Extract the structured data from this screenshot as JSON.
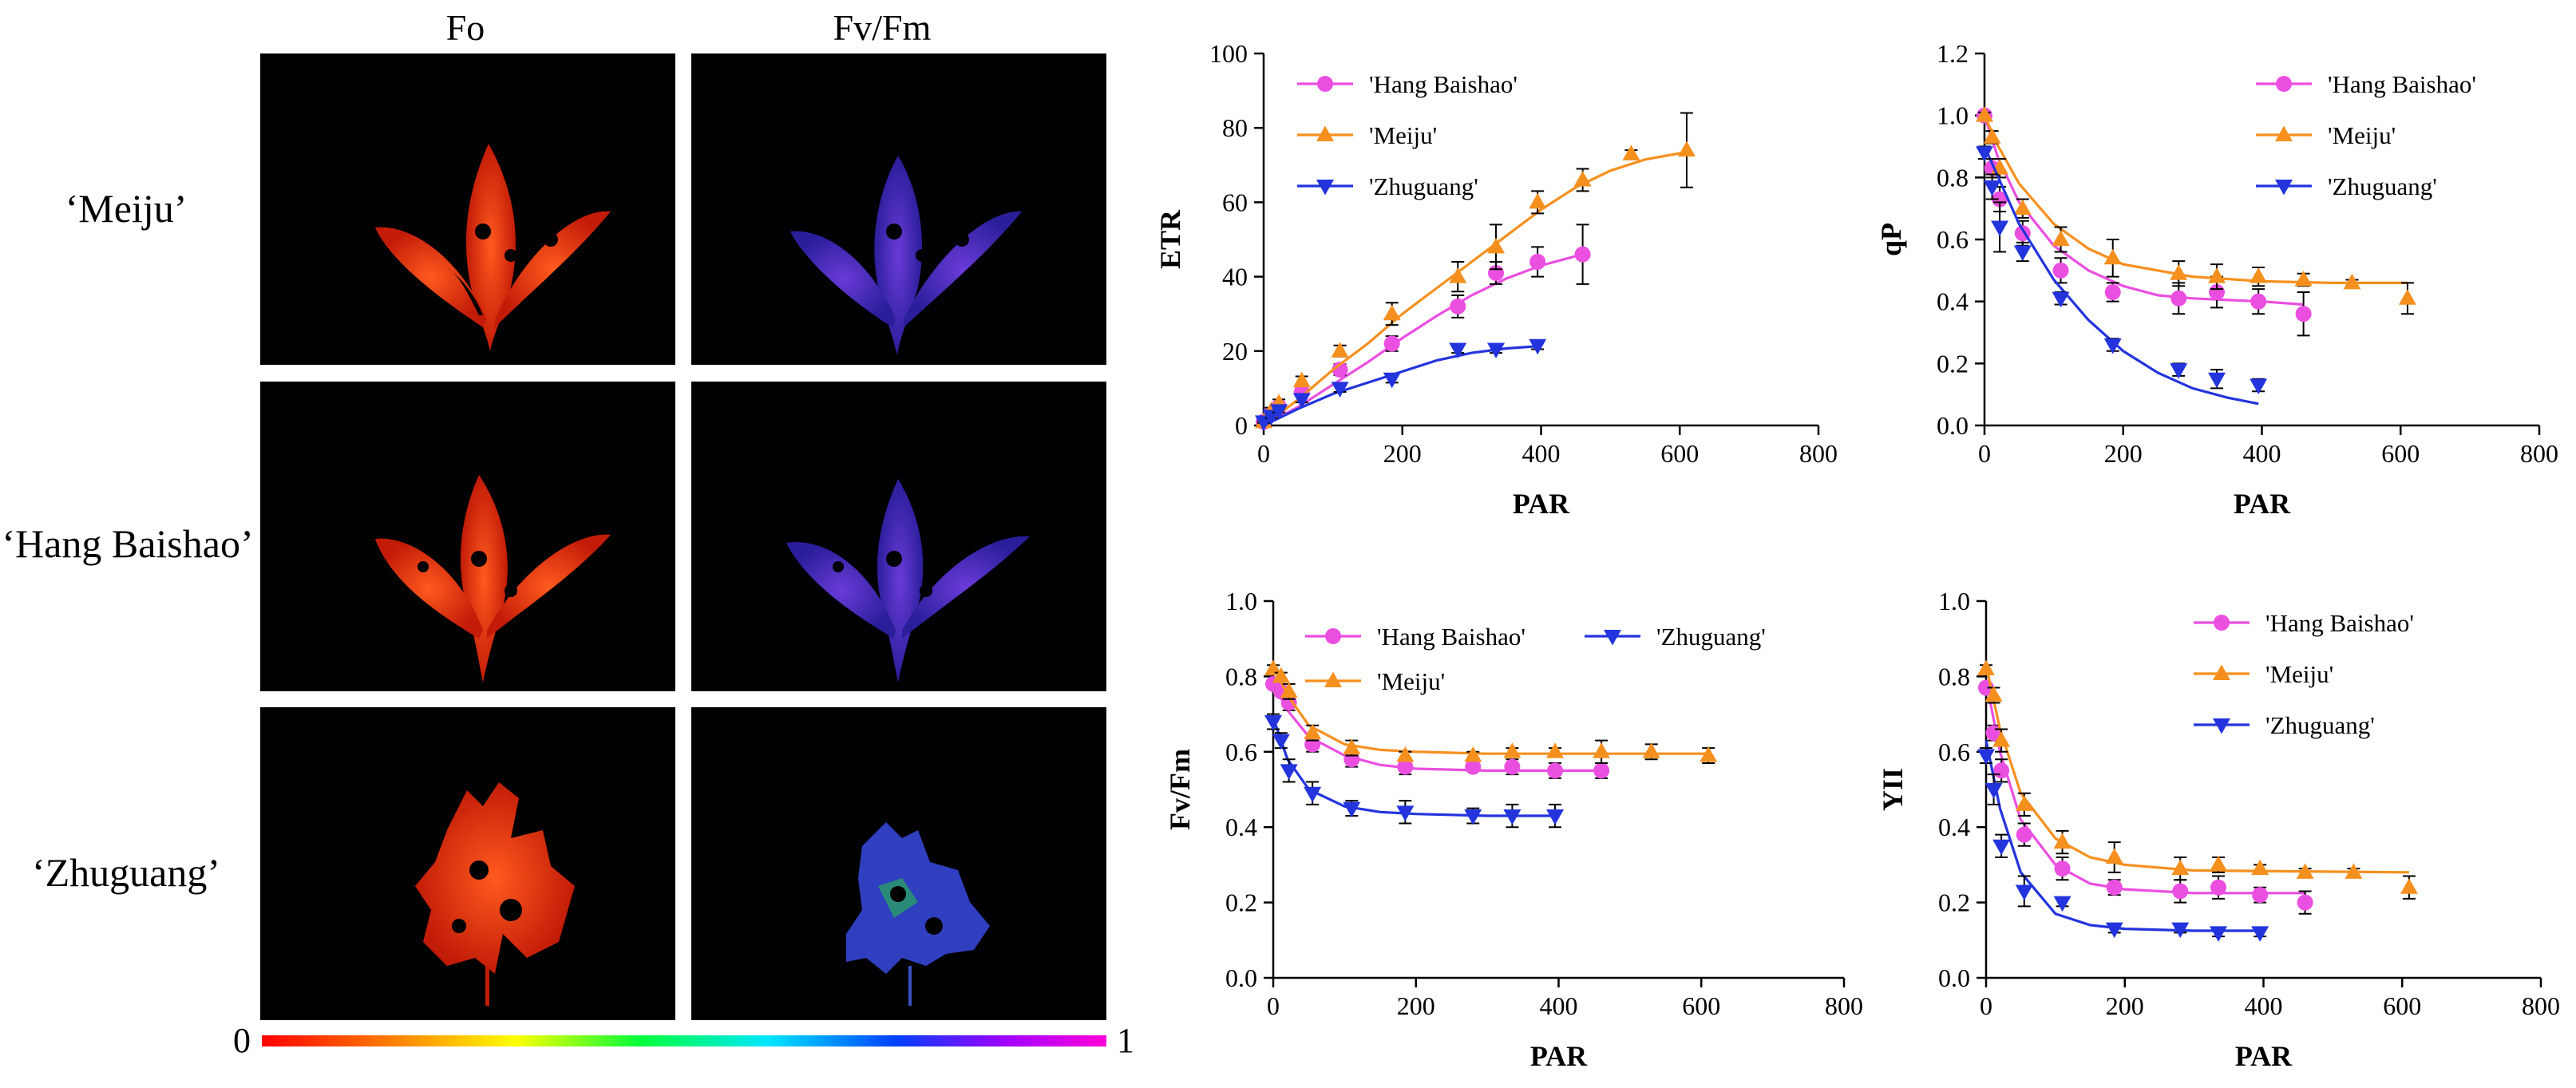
{
  "figure": {
    "column_titles": [
      "Fo",
      "Fv/Fm"
    ],
    "row_labels": [
      "‘Meiju’",
      "‘Hang Baishao’",
      "‘Zhuguang’"
    ],
    "colorbar": {
      "min_label": "0",
      "max_label": "1"
    }
  },
  "colors": {
    "hang": "#ea4fe0",
    "meiju": "#f5901f",
    "zhuguang": "#2334dd",
    "fo_leaf": "#ee3a12",
    "fvfm_leaf": "#4f2cc0",
    "image_bg": "#000000"
  },
  "chart_data": [
    {
      "type": "scatter",
      "xlabel": "PAR",
      "ylabel": "ETR",
      "xlim": [
        0,
        800
      ],
      "ylim": [
        0,
        100
      ],
      "xticks": [
        "0",
        "200",
        "400",
        "600",
        "800"
      ],
      "yticks": [
        "0",
        "20",
        "40",
        "60",
        "80",
        "100"
      ],
      "legend_position": "top-left",
      "series": [
        {
          "name": "'Hang Baishao'",
          "marker": "circle",
          "x": [
            0,
            11,
            22,
            55,
            110,
            185,
            280,
            335,
            395,
            460
          ],
          "y": [
            1,
            3,
            5,
            9,
            15,
            22,
            32,
            41,
            44,
            46
          ],
          "err": [
            0.5,
            0.8,
            1,
            1.2,
            1.5,
            2,
            3,
            3,
            4,
            8
          ],
          "fit": [
            [
              0,
              0
            ],
            [
              50,
              5
            ],
            [
              100,
              11
            ],
            [
              150,
              17
            ],
            [
              200,
              23.5
            ],
            [
              250,
              29.5
            ],
            [
              300,
              35
            ],
            [
              350,
              39.5
            ],
            [
              400,
              43
            ],
            [
              460,
              46
            ]
          ]
        },
        {
          "name": "'Meiju'",
          "marker": "triangle-up",
          "x": [
            0,
            11,
            22,
            55,
            110,
            185,
            280,
            335,
            395,
            460,
            530,
            610
          ],
          "y": [
            1,
            4,
            6,
            12,
            20,
            30,
            40,
            48,
            60,
            66,
            73,
            74
          ],
          "err": [
            0.5,
            0.8,
            1,
            1.2,
            1.5,
            3,
            4,
            6,
            3,
            3,
            1,
            10
          ],
          "fit": [
            [
              0,
              0
            ],
            [
              50,
              7
            ],
            [
              100,
              15
            ],
            [
              150,
              22
            ],
            [
              200,
              30
            ],
            [
              250,
              37
            ],
            [
              300,
              44
            ],
            [
              350,
              51
            ],
            [
              400,
              58
            ],
            [
              450,
              64
            ],
            [
              500,
              68.5
            ],
            [
              550,
              71.5
            ],
            [
              610,
              73.5
            ]
          ]
        },
        {
          "name": "'Zhuguang'",
          "marker": "triangle-down",
          "x": [
            0,
            11,
            22,
            55,
            110,
            185,
            280,
            335,
            395
          ],
          "y": [
            1,
            2.5,
            4,
            7,
            10,
            12.5,
            20.5,
            20.5,
            21.5
          ],
          "err": [
            0.3,
            0.5,
            0.5,
            0.8,
            1,
            1,
            1,
            1,
            1
          ],
          "fit": [
            [
              0,
              0
            ],
            [
              50,
              4.5
            ],
            [
              100,
              8.5
            ],
            [
              150,
              11.5
            ],
            [
              200,
              14.5
            ],
            [
              250,
              17.5
            ],
            [
              300,
              19.5
            ],
            [
              350,
              20.7
            ],
            [
              395,
              21.3
            ]
          ]
        }
      ]
    },
    {
      "type": "scatter",
      "xlabel": "PAR",
      "ylabel": "qP",
      "xlim": [
        0,
        800
      ],
      "ylim": [
        0,
        1.2
      ],
      "xticks": [
        "0",
        "200",
        "400",
        "600",
        "800"
      ],
      "yticks": [
        "0.0",
        "0.2",
        "0.4",
        "0.6",
        "0.8",
        "1.0",
        "1.2"
      ],
      "legend_position": "top-right",
      "series": [
        {
          "name": "'Hang Baishao'",
          "marker": "circle",
          "x": [
            0,
            11,
            22,
            55,
            110,
            185,
            280,
            335,
            395,
            460
          ],
          "y": [
            1.0,
            0.83,
            0.73,
            0.62,
            0.5,
            0.43,
            0.41,
            0.43,
            0.4,
            0.36
          ],
          "err": [
            0.01,
            0.03,
            0.04,
            0.04,
            0.04,
            0.03,
            0.05,
            0.05,
            0.04,
            0.07
          ],
          "fit": [
            [
              0,
              1.0
            ],
            [
              20,
              0.86
            ],
            [
              50,
              0.72
            ],
            [
              100,
              0.58
            ],
            [
              150,
              0.5
            ],
            [
              200,
              0.45
            ],
            [
              250,
              0.42
            ],
            [
              300,
              0.41
            ],
            [
              400,
              0.4
            ],
            [
              460,
              0.39
            ]
          ]
        },
        {
          "name": "'Meiju'",
          "marker": "triangle-up",
          "x": [
            0,
            11,
            22,
            55,
            110,
            185,
            280,
            335,
            395,
            460,
            530,
            610
          ],
          "y": [
            1.0,
            0.93,
            0.83,
            0.7,
            0.6,
            0.54,
            0.49,
            0.48,
            0.48,
            0.47,
            0.46,
            0.41
          ],
          "err": [
            0.01,
            0.02,
            0.03,
            0.03,
            0.04,
            0.06,
            0.04,
            0.04,
            0.03,
            0.02,
            0.01,
            0.05
          ],
          "fit": [
            [
              0,
              1.0
            ],
            [
              20,
              0.9
            ],
            [
              50,
              0.78
            ],
            [
              100,
              0.65
            ],
            [
              150,
              0.57
            ],
            [
              200,
              0.52
            ],
            [
              300,
              0.48
            ],
            [
              400,
              0.465
            ],
            [
              500,
              0.46
            ],
            [
              610,
              0.46
            ]
          ]
        },
        {
          "name": "'Zhuguang'",
          "marker": "triangle-down",
          "x": [
            0,
            11,
            22,
            55,
            110,
            185,
            280,
            335,
            395
          ],
          "y": [
            0.88,
            0.77,
            0.64,
            0.56,
            0.41,
            0.26,
            0.18,
            0.15,
            0.13
          ],
          "err": [
            0.02,
            0.04,
            0.08,
            0.03,
            0.02,
            0.02,
            0.02,
            0.03,
            0.02
          ],
          "fit": [
            [
              0,
              0.9
            ],
            [
              50,
              0.65
            ],
            [
              100,
              0.47
            ],
            [
              150,
              0.34
            ],
            [
              200,
              0.24
            ],
            [
              250,
              0.17
            ],
            [
              300,
              0.12
            ],
            [
              350,
              0.09
            ],
            [
              395,
              0.07
            ]
          ]
        }
      ]
    },
    {
      "type": "scatter",
      "xlabel": "PAR",
      "ylabel": "Fv/Fm",
      "xlim": [
        0,
        800
      ],
      "ylim": [
        0,
        1.0
      ],
      "xticks": [
        "0",
        "200",
        "400",
        "600",
        "800"
      ],
      "yticks": [
        "0.0",
        "0.2",
        "0.4",
        "0.6",
        "0.8",
        "1.0"
      ],
      "legend_position": "top",
      "series": [
        {
          "name": "'Hang Baishao'",
          "marker": "circle",
          "x": [
            0,
            11,
            22,
            55,
            110,
            185,
            280,
            335,
            395,
            460
          ],
          "y": [
            0.78,
            0.76,
            0.73,
            0.62,
            0.58,
            0.56,
            0.56,
            0.56,
            0.55,
            0.55
          ],
          "err": [
            0.01,
            0.01,
            0.02,
            0.02,
            0.02,
            0.02,
            0.01,
            0.02,
            0.02,
            0.02
          ],
          "fit": [
            [
              0,
              0.78
            ],
            [
              20,
              0.71
            ],
            [
              50,
              0.64
            ],
            [
              100,
              0.59
            ],
            [
              150,
              0.565
            ],
            [
              200,
              0.555
            ],
            [
              300,
              0.55
            ],
            [
              460,
              0.55
            ]
          ]
        },
        {
          "name": "'Meiju'",
          "marker": "triangle-up",
          "x": [
            0,
            11,
            22,
            55,
            110,
            185,
            280,
            335,
            395,
            460,
            530,
            610
          ],
          "y": [
            0.82,
            0.8,
            0.76,
            0.65,
            0.61,
            0.59,
            0.59,
            0.6,
            0.6,
            0.6,
            0.6,
            0.59
          ],
          "err": [
            0.01,
            0.01,
            0.02,
            0.02,
            0.02,
            0.01,
            0.01,
            0.01,
            0.01,
            0.03,
            0.02,
            0.02
          ],
          "fit": [
            [
              0,
              0.83
            ],
            [
              20,
              0.75
            ],
            [
              50,
              0.67
            ],
            [
              100,
              0.62
            ],
            [
              150,
              0.605
            ],
            [
              200,
              0.6
            ],
            [
              300,
              0.595
            ],
            [
              610,
              0.595
            ]
          ]
        },
        {
          "name": "'Zhuguang'",
          "marker": "triangle-down",
          "x": [
            0,
            11,
            22,
            55,
            110,
            185,
            280,
            335,
            395
          ],
          "y": [
            0.68,
            0.63,
            0.55,
            0.49,
            0.45,
            0.44,
            0.43,
            0.43,
            0.43
          ],
          "err": [
            0.02,
            0.02,
            0.03,
            0.03,
            0.02,
            0.03,
            0.02,
            0.03,
            0.03
          ],
          "fit": [
            [
              0,
              0.69
            ],
            [
              20,
              0.58
            ],
            [
              50,
              0.5
            ],
            [
              100,
              0.455
            ],
            [
              150,
              0.44
            ],
            [
              200,
              0.435
            ],
            [
              300,
              0.43
            ],
            [
              395,
              0.43
            ]
          ]
        }
      ]
    },
    {
      "type": "scatter",
      "xlabel": "PAR",
      "ylabel": "YII",
      "xlim": [
        0,
        800
      ],
      "ylim": [
        0,
        1.0
      ],
      "xticks": [
        "0",
        "200",
        "400",
        "600",
        "800"
      ],
      "yticks": [
        "0.0",
        "0.2",
        "0.4",
        "0.6",
        "0.8",
        "1.0"
      ],
      "legend_position": "top-right",
      "series": [
        {
          "name": "'Hang Baishao'",
          "marker": "circle",
          "x": [
            0,
            11,
            22,
            55,
            110,
            185,
            280,
            335,
            395,
            460
          ],
          "y": [
            0.77,
            0.65,
            0.55,
            0.38,
            0.29,
            0.24,
            0.23,
            0.24,
            0.22,
            0.2
          ],
          "err": [
            0.01,
            0.02,
            0.03,
            0.03,
            0.03,
            0.02,
            0.03,
            0.03,
            0.02,
            0.03
          ],
          "fit": [
            [
              0,
              0.79
            ],
            [
              20,
              0.6
            ],
            [
              50,
              0.42
            ],
            [
              100,
              0.3
            ],
            [
              150,
              0.25
            ],
            [
              200,
              0.235
            ],
            [
              300,
              0.225
            ],
            [
              460,
              0.225
            ]
          ]
        },
        {
          "name": "'Meiju'",
          "marker": "triangle-up",
          "x": [
            0,
            11,
            22,
            55,
            110,
            185,
            280,
            335,
            395,
            460,
            530,
            610
          ],
          "y": [
            0.82,
            0.75,
            0.63,
            0.46,
            0.36,
            0.32,
            0.29,
            0.3,
            0.29,
            0.28,
            0.28,
            0.24
          ],
          "err": [
            0.01,
            0.02,
            0.03,
            0.03,
            0.03,
            0.04,
            0.03,
            0.02,
            0.01,
            0.01,
            0.01,
            0.03
          ],
          "fit": [
            [
              0,
              0.83
            ],
            [
              20,
              0.66
            ],
            [
              50,
              0.49
            ],
            [
              100,
              0.37
            ],
            [
              150,
              0.32
            ],
            [
              200,
              0.3
            ],
            [
              300,
              0.285
            ],
            [
              610,
              0.28
            ]
          ]
        },
        {
          "name": "'Zhuguang'",
          "marker": "triangle-down",
          "x": [
            0,
            11,
            22,
            55,
            110,
            185,
            280,
            335,
            395
          ],
          "y": [
            0.59,
            0.5,
            0.35,
            0.23,
            0.2,
            0.13,
            0.13,
            0.12,
            0.12
          ],
          "err": [
            0.02,
            0.04,
            0.03,
            0.04,
            0.01,
            0.01,
            0.01,
            0.01,
            0.01
          ],
          "fit": [
            [
              0,
              0.63
            ],
            [
              20,
              0.45
            ],
            [
              50,
              0.28
            ],
            [
              100,
              0.17
            ],
            [
              150,
              0.14
            ],
            [
              200,
              0.13
            ],
            [
              300,
              0.125
            ],
            [
              395,
              0.125
            ]
          ]
        }
      ]
    }
  ]
}
